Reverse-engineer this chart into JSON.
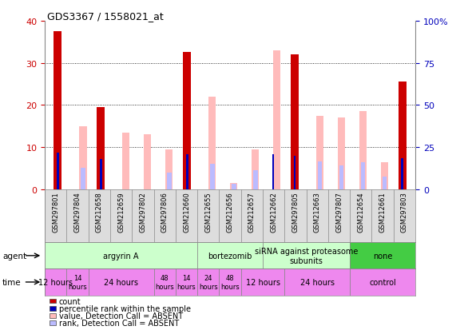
{
  "title": "GDS3367 / 1558021_at",
  "samples": [
    "GSM297801",
    "GSM297804",
    "GSM212658",
    "GSM212659",
    "GSM297802",
    "GSM297806",
    "GSM212660",
    "GSM212655",
    "GSM212656",
    "GSM212657",
    "GSM212662",
    "GSM297805",
    "GSM212663",
    "GSM297807",
    "GSM212654",
    "GSM212661",
    "GSM297803"
  ],
  "count_values": [
    37.5,
    0,
    19.5,
    0,
    0,
    0,
    32.5,
    0,
    0,
    0,
    0,
    32.0,
    0,
    0,
    0,
    0,
    25.5
  ],
  "value_absent": [
    0,
    15.0,
    0,
    13.5,
    13.0,
    9.5,
    0,
    22.0,
    1.5,
    9.5,
    33.0,
    0,
    17.5,
    17.0,
    18.5,
    6.5,
    0
  ],
  "rank_present": [
    22.0,
    0,
    18.0,
    0,
    0,
    0,
    21.0,
    0,
    0,
    0,
    21.0,
    20.0,
    0,
    0,
    0,
    0,
    18.5
  ],
  "rank_absent": [
    0,
    13.0,
    0,
    0,
    0,
    10.0,
    0,
    15.0,
    3.5,
    11.5,
    0,
    0,
    16.5,
    14.0,
    16.0,
    7.5,
    0
  ],
  "color_count": "#cc0000",
  "color_rank_present": "#0000bb",
  "color_value_absent": "#ffbbbb",
  "color_rank_absent": "#bbbbff",
  "agent_groups": [
    {
      "label": "argyrin A",
      "start": 0,
      "end": 7,
      "color": "#ccffcc"
    },
    {
      "label": "bortezomib",
      "start": 7,
      "end": 10,
      "color": "#ccffcc"
    },
    {
      "label": "siRNA against proteasome\nsubunits",
      "start": 10,
      "end": 14,
      "color": "#ccffcc"
    },
    {
      "label": "none",
      "start": 14,
      "end": 17,
      "color": "#44cc44"
    }
  ],
  "time_groups": [
    {
      "label": "12 hours",
      "start": 0,
      "end": 1,
      "fontsize": 7
    },
    {
      "label": "14\nhours",
      "start": 1,
      "end": 2,
      "fontsize": 6
    },
    {
      "label": "24 hours",
      "start": 2,
      "end": 5,
      "fontsize": 7
    },
    {
      "label": "48\nhours",
      "start": 5,
      "end": 6,
      "fontsize": 6
    },
    {
      "label": "14\nhours",
      "start": 6,
      "end": 7,
      "fontsize": 6
    },
    {
      "label": "24\nhours",
      "start": 7,
      "end": 8,
      "fontsize": 6
    },
    {
      "label": "48\nhours",
      "start": 8,
      "end": 9,
      "fontsize": 6
    },
    {
      "label": "12 hours",
      "start": 9,
      "end": 11,
      "fontsize": 7
    },
    {
      "label": "24 hours",
      "start": 11,
      "end": 14,
      "fontsize": 7
    },
    {
      "label": "control",
      "start": 14,
      "end": 17,
      "fontsize": 7
    }
  ],
  "legend_items": [
    {
      "color": "#cc0000",
      "label": "count"
    },
    {
      "color": "#0000bb",
      "label": "percentile rank within the sample"
    },
    {
      "color": "#ffbbbb",
      "label": "value, Detection Call = ABSENT"
    },
    {
      "color": "#bbbbff",
      "label": "rank, Detection Call = ABSENT"
    }
  ]
}
